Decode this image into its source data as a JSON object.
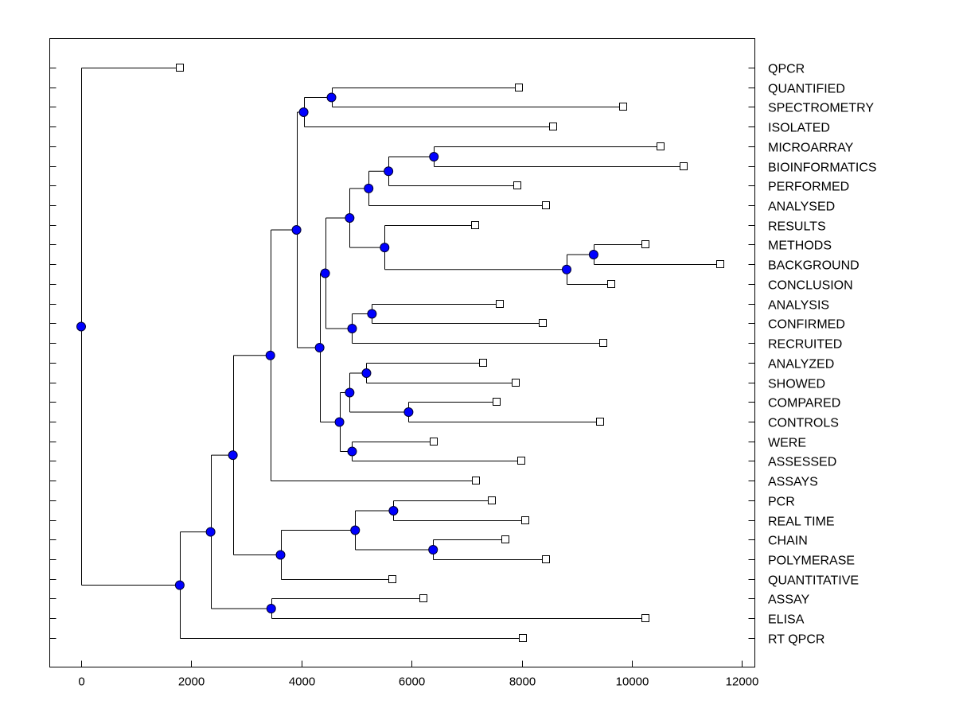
{
  "chart_data": {
    "type": "dendrogram",
    "orientation": "horizontal",
    "xlim": [
      -580,
      12200
    ],
    "xticks": [
      0,
      2000,
      4000,
      6000,
      8000,
      10000,
      12000
    ],
    "xtick_labels": [
      "0",
      "2000",
      "4000",
      "6000",
      "8000",
      "10000",
      "12000"
    ],
    "colors": {
      "node": "#0000ff",
      "line": "#000000",
      "leaf": "#ffffff"
    },
    "tree": {
      "height": 0,
      "children": [
        {
          "label": "QPCR",
          "height": 1790
        },
        {
          "height": 1790,
          "children": [
            {
              "height": 2350,
              "children": [
                {
                  "height": 2755,
                  "children": [
                    {
                      "height": 3435,
                      "children": [
                        {
                          "height": 3910,
                          "children": [
                            {
                              "height": 4040,
                              "children": [
                                {
                                  "height": 4545,
                                  "children": [
                                    {
                                      "label": "QUANTIFIED",
                                      "height": 7950
                                    },
                                    {
                                      "label": "SPECTROMETRY",
                                      "height": 9840
                                    }
                                  ]
                                },
                                {
                                  "label": "ISOLATED",
                                  "height": 8570
                                }
                              ]
                            },
                            {
                              "height": 4330,
                              "children": [
                                {
                                  "height": 4430,
                                  "children": [
                                    {
                                      "height": 4875,
                                      "children": [
                                        {
                                          "height": 5220,
                                          "children": [
                                            {
                                              "height": 5580,
                                              "children": [
                                                {
                                                  "height": 6405,
                                                  "children": [
                                                    {
                                                      "label": "MICROARRAY",
                                                      "height": 10515
                                                    },
                                                    {
                                                      "label": "BIOINFORMATICS",
                                                      "height": 10935
                                                    }
                                                  ]
                                                },
                                                {
                                                  "label": "PERFORMED",
                                                  "height": 7920
                                                }
                                              ]
                                            },
                                            {
                                              "label": "ANALYSED",
                                              "height": 8440
                                            }
                                          ]
                                        },
                                        {
                                          "height": 5510,
                                          "children": [
                                            {
                                              "label": "RESULTS",
                                              "height": 7155
                                            },
                                            {
                                              "height": 8815,
                                              "children": [
                                                {
                                                  "height": 9305,
                                                  "children": [
                                                    {
                                                      "label": "METHODS",
                                                      "height": 10240
                                                    },
                                                    {
                                                      "label": "BACKGROUND",
                                                      "height": 11610
                                                    }
                                                  ]
                                                },
                                                {
                                                  "label": "CONCLUSION",
                                                  "height": 9620
                                                }
                                              ]
                                            }
                                          ]
                                        }
                                      ]
                                    },
                                    {
                                      "height": 4920,
                                      "children": [
                                        {
                                          "height": 5280,
                                          "children": [
                                            {
                                              "label": "ANALYSIS",
                                              "height": 7600
                                            },
                                            {
                                              "label": "CONFIRMED",
                                              "height": 8380
                                            }
                                          ]
                                        },
                                        {
                                          "label": "RECRUITED",
                                          "height": 9475
                                        }
                                      ]
                                    }
                                  ]
                                },
                                {
                                  "height": 4690,
                                  "children": [
                                    {
                                      "height": 4875,
                                      "children": [
                                        {
                                          "height": 5180,
                                          "children": [
                                            {
                                              "label": "ANALYZED",
                                              "height": 7300
                                            },
                                            {
                                              "label": "SHOWED",
                                              "height": 7890
                                            }
                                          ]
                                        },
                                        {
                                          "height": 5945,
                                          "children": [
                                            {
                                              "label": "COMPARED",
                                              "height": 7545
                                            },
                                            {
                                              "label": "CONTROLS",
                                              "height": 9420
                                            }
                                          ]
                                        }
                                      ]
                                    },
                                    {
                                      "height": 4920,
                                      "children": [
                                        {
                                          "label": "WERE",
                                          "height": 6405
                                        },
                                        {
                                          "label": "ASSESSED",
                                          "height": 7990
                                        }
                                      ]
                                    }
                                  ]
                                }
                              ]
                            }
                          ]
                        },
                        {
                          "label": "ASSAYS",
                          "height": 7170
                        }
                      ]
                    },
                    {
                      "height": 3620,
                      "children": [
                        {
                          "height": 4975,
                          "children": [
                            {
                              "height": 5670,
                              "children": [
                                {
                                  "label": "PCR",
                                  "height": 7455
                                },
                                {
                                  "label": "REAL TIME",
                                  "height": 8065
                                }
                              ]
                            },
                            {
                              "height": 6390,
                              "children": [
                                {
                                  "label": "CHAIN",
                                  "height": 7700
                                },
                                {
                                  "label": "POLYMERASE",
                                  "height": 8440
                                }
                              ]
                            }
                          ]
                        },
                        {
                          "label": "QUANTITATIVE",
                          "height": 5655
                        }
                      ]
                    }
                  ]
                },
                {
                  "height": 3450,
                  "children": [
                    {
                      "label": "ASSAY",
                      "height": 6215
                    },
                    {
                      "label": "ELISA",
                      "height": 10240
                    }
                  ]
                }
              ]
            },
            {
              "label": "RT QPCR",
              "height": 8020
            }
          ]
        }
      ]
    }
  }
}
